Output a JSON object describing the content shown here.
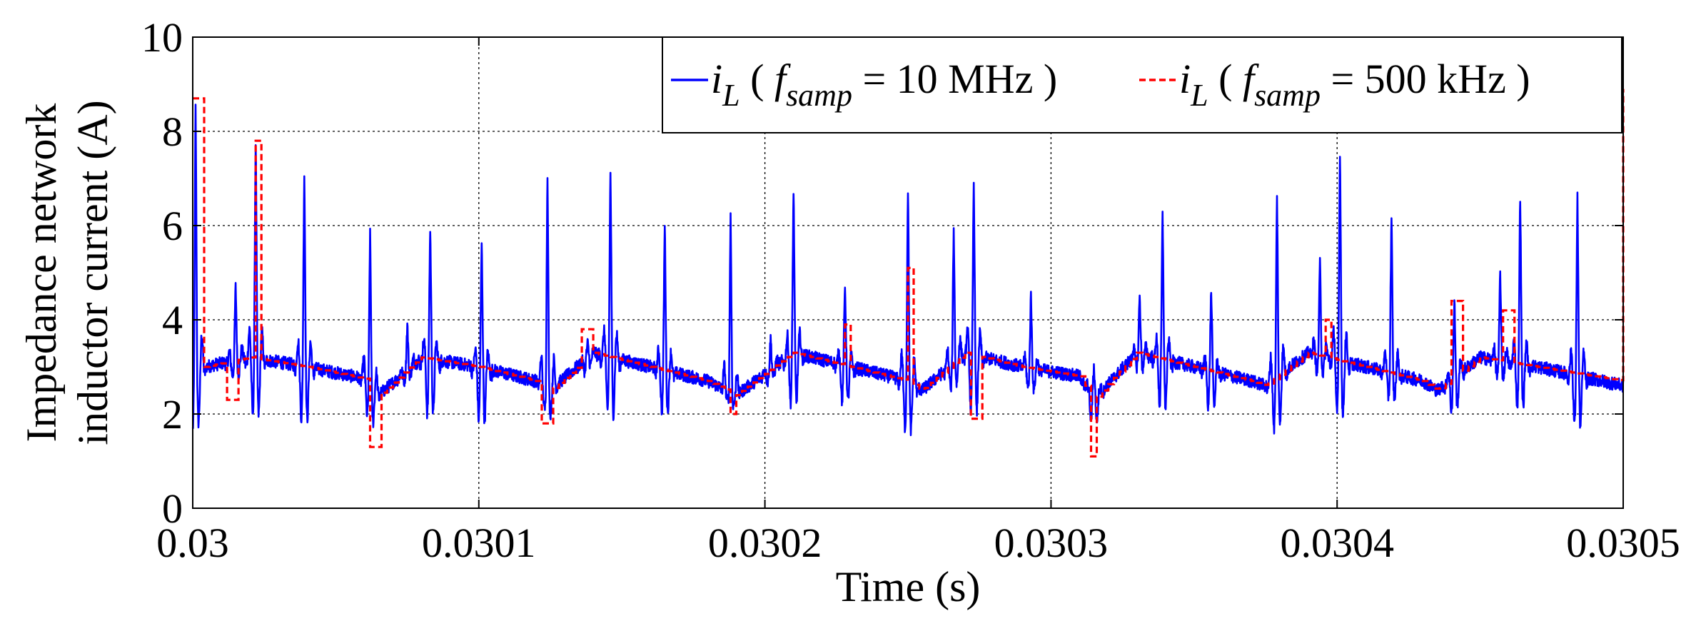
{
  "chart_data": {
    "type": "line",
    "xlabel": "Time (s)",
    "ylabel_lines": [
      "Impedance network",
      "inductor current (A)"
    ],
    "xlim": [
      0.03,
      0.0305
    ],
    "ylim": [
      0,
      10
    ],
    "grid": true,
    "legend_position": "top-right",
    "x_ticks": [
      0.03,
      0.0301,
      0.0302,
      0.0303,
      0.0304,
      0.0305
    ],
    "x_tick_labels": [
      "0.03",
      "0.0301",
      "0.0302",
      "0.0303",
      "0.0304",
      "0.0305"
    ],
    "y_ticks": [
      0,
      2,
      4,
      6,
      8,
      10
    ],
    "y_tick_labels": [
      "0",
      "2",
      "4",
      "6",
      "8",
      "10"
    ],
    "legend": [
      {
        "symbol": "i",
        "subscript": "L",
        "text_before": " ( ",
        "f": "f",
        "f_sub": "samp",
        "text_after": " = 10 MHz )"
      },
      {
        "symbol": "i",
        "subscript": "L",
        "text_before": " ( ",
        "f": "f",
        "f_sub": "samp",
        "text_after": " = 500 kHz )"
      }
    ],
    "series": [
      {
        "color": "#0000ff",
        "style": "solid",
        "baseline": [
          [
            0.03,
            2.7
          ],
          [
            0.030004,
            3.0
          ],
          [
            0.03002,
            3.2
          ],
          [
            0.03004,
            3.0
          ],
          [
            0.03006,
            2.75
          ],
          [
            0.030065,
            2.4
          ],
          [
            0.03008,
            3.2
          ],
          [
            0.0301,
            3.0
          ],
          [
            0.03012,
            2.7
          ],
          [
            0.030125,
            2.5
          ],
          [
            0.03014,
            3.3
          ],
          [
            0.03016,
            3.0
          ],
          [
            0.03018,
            2.7
          ],
          [
            0.03019,
            2.4
          ],
          [
            0.03021,
            3.3
          ],
          [
            0.03023,
            3.0
          ],
          [
            0.03025,
            2.7
          ],
          [
            0.030255,
            2.5
          ],
          [
            0.03027,
            3.3
          ],
          [
            0.03029,
            3.0
          ],
          [
            0.03031,
            2.8
          ],
          [
            0.030315,
            2.3
          ],
          [
            0.03033,
            3.3
          ],
          [
            0.03035,
            3.0
          ],
          [
            0.03037,
            2.7
          ],
          [
            0.030375,
            2.6
          ],
          [
            0.03039,
            3.3
          ],
          [
            0.03041,
            3.0
          ],
          [
            0.03043,
            2.7
          ],
          [
            0.030435,
            2.5
          ],
          [
            0.03045,
            3.2
          ],
          [
            0.03047,
            3.0
          ],
          [
            0.0305,
            2.6
          ]
        ],
        "spikes": [
          [
            0.030001,
            8.5,
            0.0
          ],
          [
            0.030015,
            4.7,
            2.3
          ],
          [
            0.030022,
            7.8,
            0.0
          ],
          [
            0.030039,
            7.1,
            0.0
          ],
          [
            0.030062,
            5.8,
            0.7
          ],
          [
            0.030075,
            3.9,
            2.5
          ],
          [
            0.030083,
            5.9,
            0.0
          ],
          [
            0.030101,
            5.6,
            0.0
          ],
          [
            0.030124,
            7.1,
            1.2
          ],
          [
            0.030138,
            3.5,
            2.6
          ],
          [
            0.030146,
            7.1,
            0.0
          ],
          [
            0.030165,
            6.0,
            0.6
          ],
          [
            0.030188,
            6.2,
            1.8
          ],
          [
            0.030202,
            3.6,
            2.4
          ],
          [
            0.03021,
            6.7,
            0.6
          ],
          [
            0.030228,
            4.7,
            1.0
          ],
          [
            0.03025,
            6.8,
            0.0
          ],
          [
            0.030266,
            5.9,
            1.8
          ],
          [
            0.030273,
            6.9,
            0.0
          ],
          [
            0.030293,
            4.5,
            1.8
          ],
          [
            0.030315,
            3.0,
            0.9
          ],
          [
            0.030331,
            4.5,
            2.5
          ],
          [
            0.030339,
            6.2,
            0.5
          ],
          [
            0.030356,
            4.6,
            0.9
          ],
          [
            0.030379,
            6.6,
            0.0
          ],
          [
            0.030394,
            5.2,
            2.3
          ],
          [
            0.030401,
            7.6,
            0.0
          ],
          [
            0.030419,
            6.2,
            1.5
          ],
          [
            0.030441,
            4.4,
            1.0
          ],
          [
            0.030457,
            5.0,
            2.2
          ],
          [
            0.030464,
            6.6,
            0.7
          ],
          [
            0.030484,
            6.6,
            0.0
          ]
        ]
      },
      {
        "color": "#ff0000",
        "style": "dashed",
        "sample_period": 2e-06,
        "baseline": [
          [
            0.03,
            2.7
          ],
          [
            0.030004,
            3.0
          ],
          [
            0.03002,
            3.2
          ],
          [
            0.03004,
            3.0
          ],
          [
            0.03006,
            2.75
          ],
          [
            0.030065,
            2.4
          ],
          [
            0.03008,
            3.2
          ],
          [
            0.0301,
            3.0
          ],
          [
            0.03012,
            2.7
          ],
          [
            0.030125,
            2.5
          ],
          [
            0.03014,
            3.3
          ],
          [
            0.03016,
            3.0
          ],
          [
            0.03018,
            2.7
          ],
          [
            0.03019,
            2.4
          ],
          [
            0.03021,
            3.3
          ],
          [
            0.03023,
            3.0
          ],
          [
            0.03025,
            2.7
          ],
          [
            0.030255,
            2.5
          ],
          [
            0.03027,
            3.3
          ],
          [
            0.03029,
            3.0
          ],
          [
            0.03031,
            2.8
          ],
          [
            0.030315,
            2.3
          ],
          [
            0.03033,
            3.3
          ],
          [
            0.03035,
            3.0
          ],
          [
            0.03037,
            2.7
          ],
          [
            0.030375,
            2.6
          ],
          [
            0.03039,
            3.3
          ],
          [
            0.03041,
            3.0
          ],
          [
            0.03043,
            2.7
          ],
          [
            0.030435,
            2.5
          ],
          [
            0.03045,
            3.2
          ],
          [
            0.03047,
            3.0
          ],
          [
            0.0305,
            2.7
          ]
        ],
        "events": [
          [
            0.030001,
            8.7
          ],
          [
            0.030013,
            2.3
          ],
          [
            0.030022,
            7.8
          ],
          [
            0.030063,
            1.3
          ],
          [
            0.030123,
            1.8
          ],
          [
            0.030137,
            3.8
          ],
          [
            0.030188,
            2.0
          ],
          [
            0.030228,
            3.9
          ],
          [
            0.03025,
            5.1
          ],
          [
            0.030273,
            1.9
          ],
          [
            0.030314,
            1.1
          ],
          [
            0.030396,
            4.0
          ],
          [
            0.030441,
            4.4
          ],
          [
            0.030459,
            4.2
          ],
          [
            0.0305,
            8.9
          ]
        ]
      }
    ]
  }
}
